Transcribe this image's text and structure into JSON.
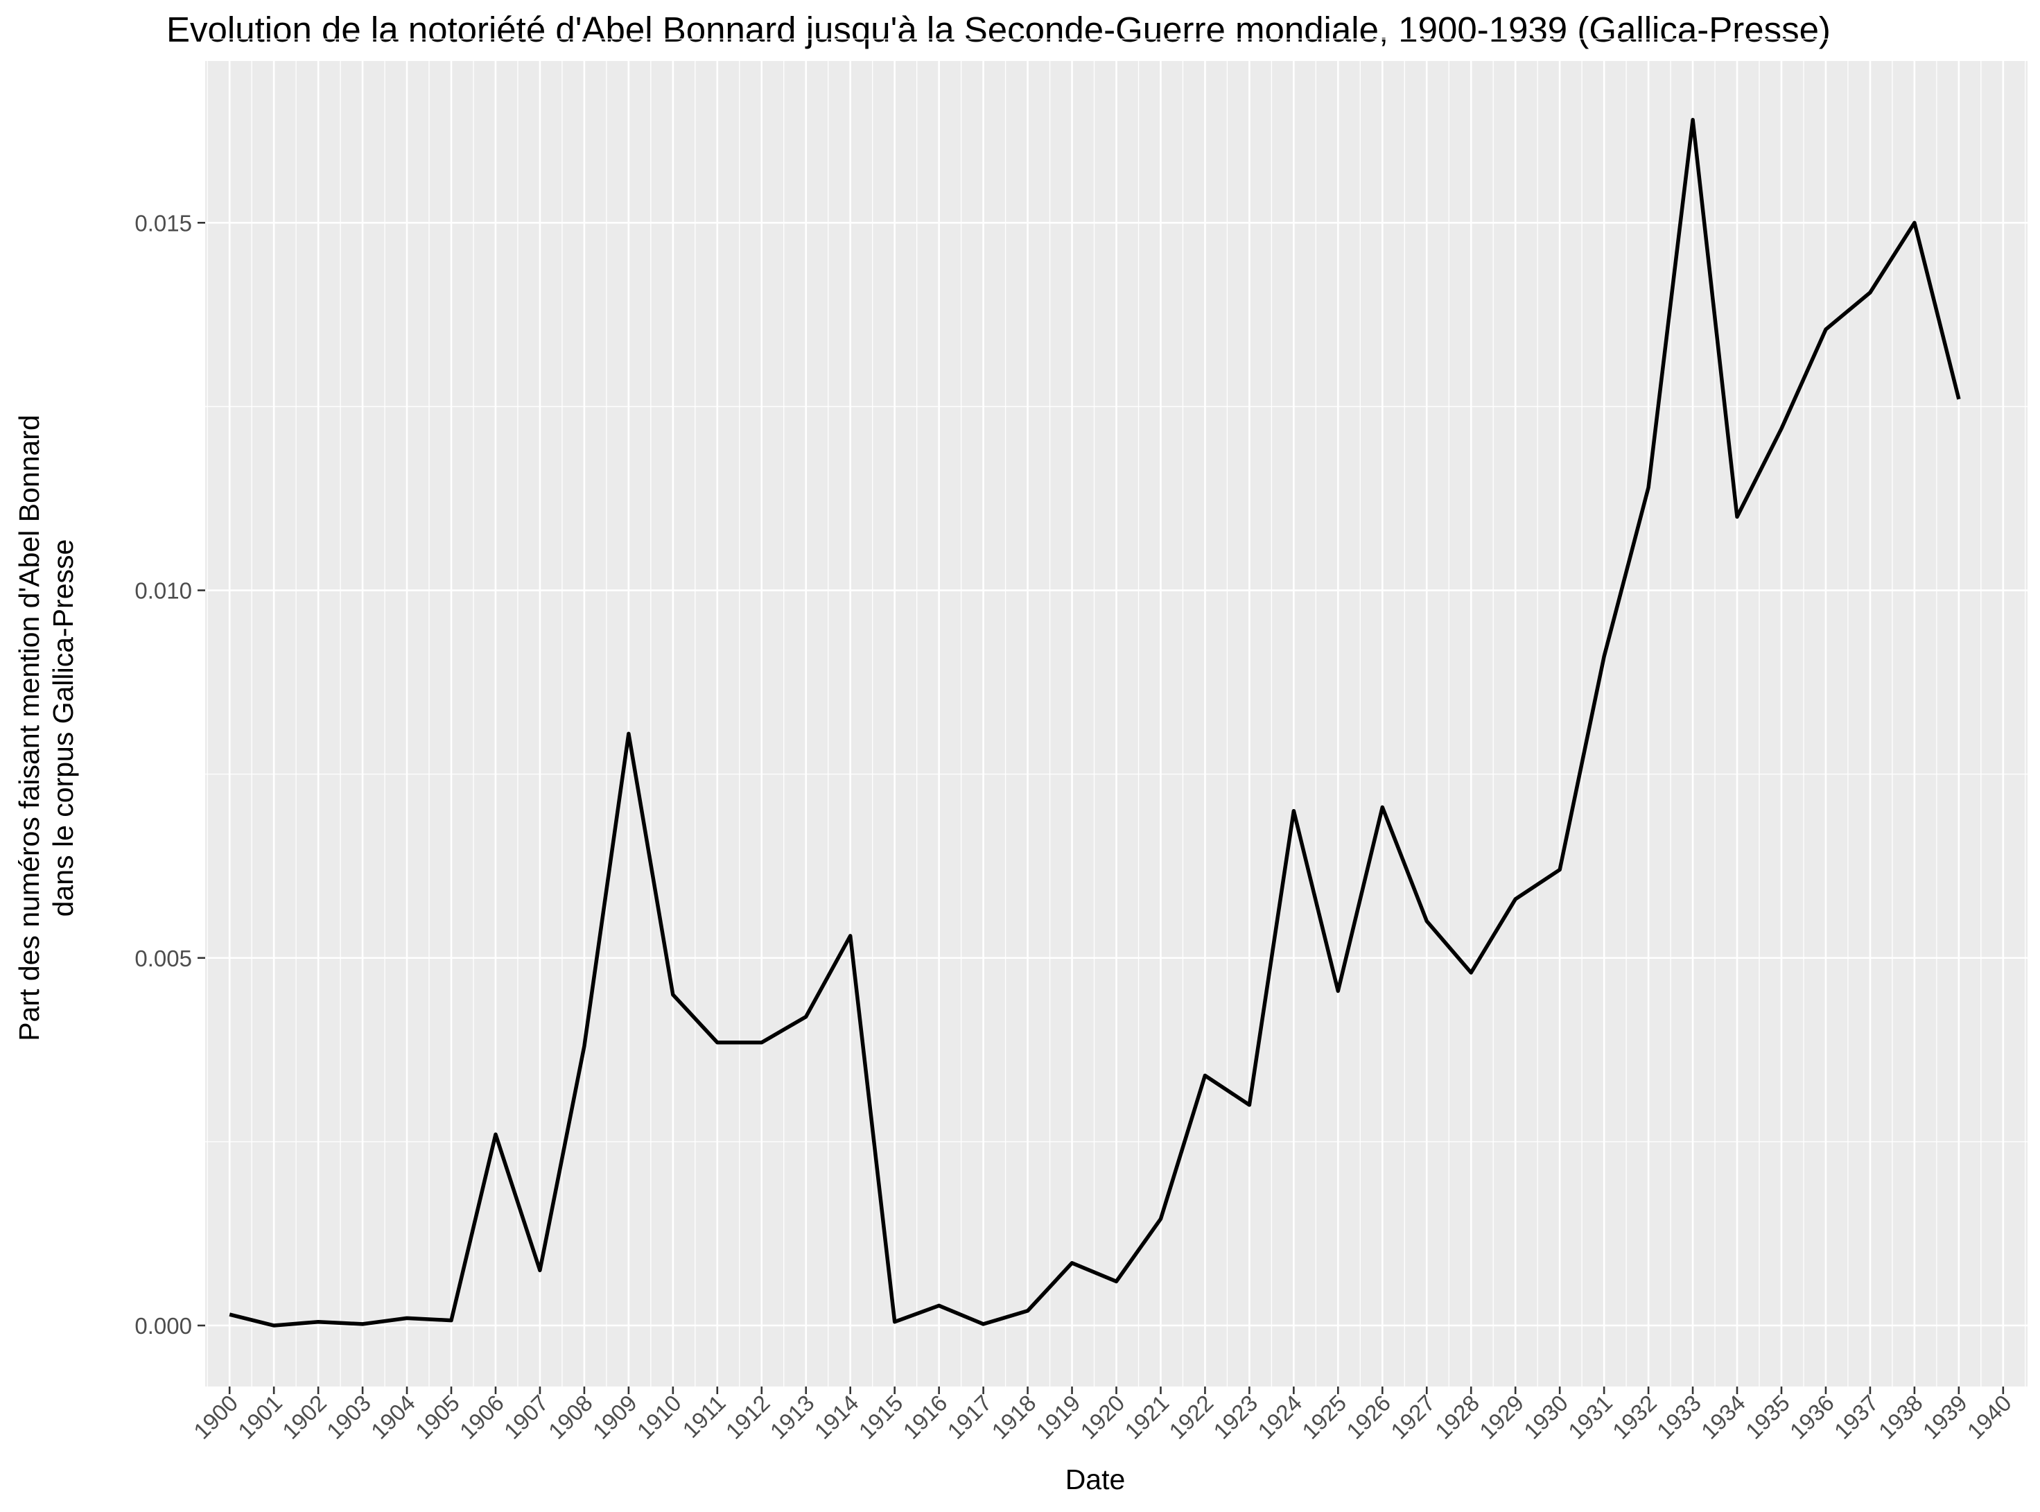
{
  "chart_data": {
    "type": "line",
    "title": "Evolution de la notoriété d'Abel Bonnard jusqu'à la Seconde-Guerre mondiale, 1900-1939 (Gallica-Presse)",
    "xlabel": "Date",
    "ylabel_lines": [
      "Part des numéros faisant mention d'Abel Bonnard",
      "dans le corpus Gallica-Presse"
    ],
    "x_tick_labels": [
      "1900",
      "1901",
      "1902",
      "1903",
      "1904",
      "1905",
      "1906",
      "1907",
      "1908",
      "1909",
      "1910",
      "1911",
      "1912",
      "1913",
      "1914",
      "1915",
      "1916",
      "1917",
      "1918",
      "1919",
      "1920",
      "1921",
      "1922",
      "1923",
      "1924",
      "1925",
      "1926",
      "1927",
      "1928",
      "1929",
      "1930",
      "1931",
      "1932",
      "1933",
      "1934",
      "1935",
      "1936",
      "1937",
      "1938",
      "1939",
      "1940"
    ],
    "y_ticks": [
      "0.000",
      "0.005",
      "0.010",
      "0.015"
    ],
    "xlim": [
      1899.45,
      1940.55
    ],
    "ylim": [
      -0.00083,
      0.0172
    ],
    "grid": true,
    "background": "#ebebeb",
    "line_color": "#000000",
    "x": [
      1900,
      1901,
      1902,
      1903,
      1904,
      1905,
      1906,
      1907,
      1908,
      1909,
      1910,
      1911,
      1912,
      1913,
      1914,
      1915,
      1916,
      1917,
      1918,
      1919,
      1920,
      1921,
      1922,
      1923,
      1924,
      1925,
      1926,
      1927,
      1928,
      1929,
      1930,
      1931,
      1932,
      1933,
      1934,
      1935,
      1936,
      1937,
      1938,
      1939
    ],
    "values": [
      0.00015,
      0.0,
      5e-05,
      2e-05,
      0.0001,
      7e-05,
      0.0026,
      0.00075,
      0.0038,
      0.00805,
      0.0045,
      0.00385,
      0.00385,
      0.0042,
      0.0053,
      5e-05,
      0.00027,
      2e-05,
      0.0002,
      0.00085,
      0.0006,
      0.00145,
      0.0034,
      0.003,
      0.007,
      0.00455,
      0.00705,
      0.0055,
      0.0048,
      0.0058,
      0.0062,
      0.0091,
      0.0114,
      0.0164,
      0.011,
      0.0122,
      0.01355,
      0.01405,
      0.015,
      0.0126
    ]
  }
}
